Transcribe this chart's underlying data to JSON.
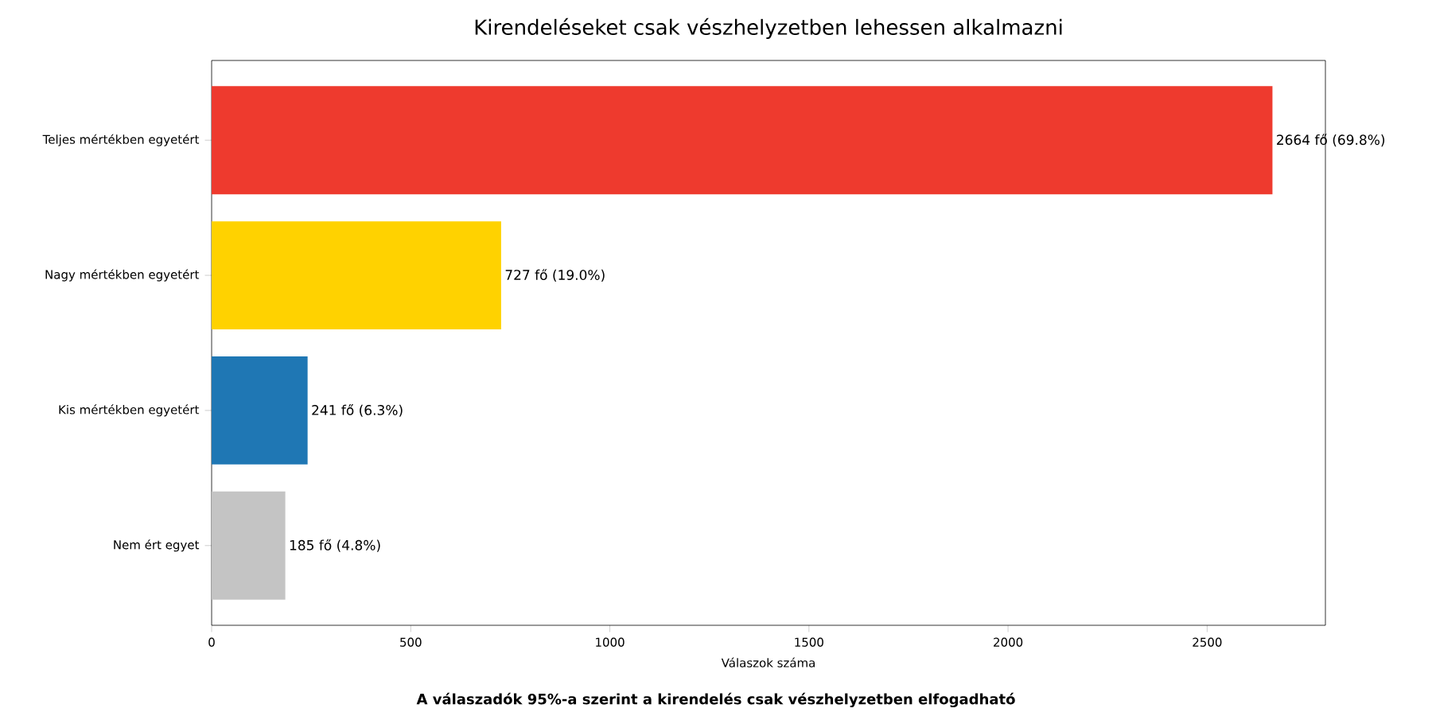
{
  "chart_data": {
    "type": "bar",
    "orientation": "horizontal",
    "title": "Kirendeléseket csak vészhelyzetben lehessen alkalmazni",
    "xlabel": "Válaszok száma",
    "categories": [
      "Teljes mértékben egyetért",
      "Nagy mértékben egyetért",
      "Kis mértékben egyetért",
      "Nem ért egyet"
    ],
    "values": [
      2664,
      727,
      241,
      185
    ],
    "colors": [
      "#ee3a2e",
      "#ffd200",
      "#1f77b4",
      "#c4c4c4"
    ],
    "value_labels": [
      "2664 fő (69.8%)",
      "727 fő (19.0%)",
      "241 fő (6.3%)",
      "185 fő (4.8%)"
    ],
    "xlim": [
      0,
      2797
    ],
    "xticks": [
      0,
      500,
      1000,
      1500,
      2000,
      2500
    ],
    "grid": false,
    "annotations": [
      "**A válaszadók 95%-a szerint a kirendelés csak vészhelyzetben elfogadható**"
    ]
  }
}
